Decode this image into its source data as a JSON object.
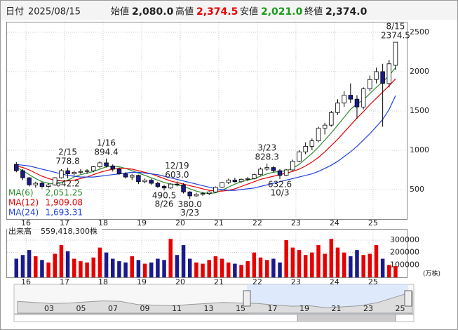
{
  "header": {
    "date_label": "日付",
    "date": "2025/08/15",
    "open_label": "始値",
    "open": "2,080.0",
    "high_label": "高値",
    "high": "2,374.5",
    "low_label": "安値",
    "low": "2,021.0",
    "close_label": "終値",
    "close": "2,374.0"
  },
  "chart_data": {
    "type": "candlestick",
    "up_color": "#ffffff",
    "down_color": "#1a1a8c",
    "vol_up_color": "#e60000",
    "vol_down_color": "#1a1a8c",
    "xlim": [
      -1.45,
      60.75
    ],
    "xticks": [
      {
        "value": 1.5,
        "label": "16"
      },
      {
        "value": 7.5,
        "label": "17"
      },
      {
        "value": 13.5,
        "label": "18"
      },
      {
        "value": 19.5,
        "label": "19"
      },
      {
        "value": 25.5,
        "label": "20"
      },
      {
        "value": 31.5,
        "label": "21"
      },
      {
        "value": 37.5,
        "label": "22"
      },
      {
        "value": 43.5,
        "label": "23"
      },
      {
        "value": 49.5,
        "label": "24"
      },
      {
        "value": 55.5,
        "label": "25"
      }
    ],
    "ylim": [
      125,
      2625
    ],
    "yticks": [
      500,
      1000,
      1500,
      2000,
      2500
    ],
    "grid": true,
    "candles": [
      [
        820,
        850,
        720,
        740
      ],
      [
        740,
        760,
        620,
        650
      ],
      [
        650,
        660,
        540,
        560
      ],
      [
        560,
        600,
        520,
        580
      ],
      [
        580,
        600,
        500,
        540
      ],
      [
        540,
        580,
        510,
        560
      ],
      [
        560,
        660,
        550,
        650
      ],
      [
        650,
        760,
        640,
        740
      ],
      [
        740,
        778.8,
        642.2,
        700
      ],
      [
        700,
        740,
        680,
        720
      ],
      [
        720,
        760,
        700,
        730
      ],
      [
        730,
        760,
        700,
        740
      ],
      [
        740,
        800,
        720,
        790
      ],
      [
        790,
        860,
        770,
        840
      ],
      [
        840,
        894.4,
        780,
        800
      ],
      [
        800,
        820,
        730,
        760
      ],
      [
        760,
        780,
        690,
        700
      ],
      [
        700,
        720,
        640,
        660
      ],
      [
        660,
        700,
        620,
        680
      ],
      [
        680,
        690,
        570,
        600
      ],
      [
        600,
        640,
        580,
        620
      ],
      [
        620,
        640,
        560,
        580
      ],
      [
        580,
        600,
        520,
        540
      ],
      [
        540,
        560,
        490.5,
        520
      ],
      [
        520,
        580,
        510,
        570
      ],
      [
        570,
        603.0,
        540,
        560
      ],
      [
        560,
        580,
        450,
        470
      ],
      [
        470,
        480,
        380.0,
        420
      ],
      [
        420,
        460,
        410,
        440
      ],
      [
        440,
        470,
        420,
        450
      ],
      [
        450,
        480,
        430,
        470
      ],
      [
        470,
        540,
        460,
        530
      ],
      [
        530,
        600,
        520,
        590
      ],
      [
        590,
        640,
        570,
        620
      ],
      [
        620,
        650,
        590,
        600
      ],
      [
        600,
        640,
        590,
        630
      ],
      [
        630,
        660,
        610,
        640
      ],
      [
        640,
        700,
        630,
        690
      ],
      [
        690,
        780,
        680,
        760
      ],
      [
        760,
        828.3,
        740,
        780
      ],
      [
        780,
        800,
        720,
        740
      ],
      [
        740,
        760,
        632.6,
        680
      ],
      [
        680,
        760,
        670,
        750
      ],
      [
        750,
        880,
        740,
        860
      ],
      [
        860,
        1000,
        850,
        980
      ],
      [
        980,
        1100,
        950,
        1050
      ],
      [
        1050,
        1150,
        1000,
        1120
      ],
      [
        1120,
        1300,
        1100,
        1280
      ],
      [
        1280,
        1350,
        1200,
        1320
      ],
      [
        1320,
        1500,
        1300,
        1480
      ],
      [
        1480,
        1650,
        1450,
        1600
      ],
      [
        1600,
        1750,
        1550,
        1700
      ],
      [
        1700,
        1850,
        1600,
        1650
      ],
      [
        1650,
        1700,
        1400,
        1550
      ],
      [
        1550,
        1800,
        1520,
        1780
      ],
      [
        1780,
        1950,
        1750,
        1900
      ],
      [
        1900,
        2050,
        1850,
        2000
      ],
      [
        2000,
        2100,
        1300,
        1850
      ],
      [
        1850,
        2150,
        1800,
        2100
      ],
      [
        2080,
        2374.5,
        2021.0,
        2374.0
      ]
    ],
    "series": [
      {
        "name": "MA(6)",
        "color": "#2e8b2e",
        "last_label": "2,051.25",
        "values": [
          780,
          740,
          690,
          640,
          600,
          580,
          570,
          590,
          620,
          660,
          690,
          710,
          730,
          760,
          790,
          800,
          790,
          770,
          740,
          710,
          680,
          650,
          620,
          590,
          570,
          560,
          540,
          510,
          480,
          460,
          450,
          460,
          490,
          530,
          570,
          600,
          620,
          640,
          670,
          700,
          720,
          730,
          740,
          770,
          820,
          890,
          960,
          1040,
          1130,
          1220,
          1320,
          1420,
          1520,
          1590,
          1640,
          1720,
          1800,
          1870,
          1950,
          2051.25
        ]
      },
      {
        "name": "MA(12)",
        "color": "#e60000",
        "last_label": "1,909.08",
        "values": [
          800,
          780,
          750,
          710,
          670,
          640,
          620,
          610,
          610,
          620,
          640,
          660,
          690,
          720,
          740,
          760,
          770,
          770,
          760,
          740,
          720,
          700,
          670,
          640,
          610,
          590,
          570,
          550,
          530,
          510,
          490,
          480,
          480,
          490,
          510,
          540,
          570,
          600,
          630,
          650,
          670,
          690,
          710,
          730,
          760,
          800,
          850,
          910,
          980,
          1060,
          1140,
          1230,
          1320,
          1410,
          1490,
          1580,
          1660,
          1740,
          1820,
          1909.08
        ]
      },
      {
        "name": "MA(24)",
        "color": "#1f3fe0",
        "last_label": "1,693.31",
        "values": [
          820,
          810,
          800,
          780,
          760,
          740,
          720,
          700,
          680,
          670,
          660,
          660,
          660,
          670,
          680,
          690,
          700,
          710,
          720,
          720,
          710,
          700,
          690,
          670,
          650,
          630,
          610,
          590,
          570,
          550,
          530,
          510,
          500,
          490,
          490,
          500,
          510,
          520,
          540,
          560,
          580,
          600,
          620,
          640,
          660,
          680,
          700,
          730,
          770,
          810,
          860,
          920,
          980,
          1050,
          1130,
          1210,
          1300,
          1390,
          1520,
          1693.31
        ]
      }
    ],
    "annotations": [
      {
        "x": 8,
        "kind": "high",
        "date": "2/15",
        "value": 778.8,
        "label": "778.8"
      },
      {
        "x": 8,
        "kind": "low",
        "value": 642.2,
        "label": "642.2"
      },
      {
        "x": 14,
        "kind": "high",
        "date": "1/16",
        "value": 894.4,
        "label": "894.4"
      },
      {
        "x": 23,
        "kind": "low",
        "date": "8/26",
        "value": 490.5,
        "label": "490.5"
      },
      {
        "x": 25,
        "kind": "high",
        "date": "12/19",
        "value": 603.0,
        "label": "603.0"
      },
      {
        "x": 27,
        "kind": "low",
        "date": "3/23",
        "value": 380.0,
        "label": "380.0"
      },
      {
        "x": 39,
        "kind": "high",
        "date": "3/23",
        "value": 828.3,
        "label": "828.3"
      },
      {
        "x": 41,
        "kind": "low",
        "date": "10/3",
        "value": 632.6,
        "label": "632.6"
      },
      {
        "x": 59,
        "kind": "high",
        "date": "8/15",
        "value": 2374.5,
        "label": "2374.5"
      }
    ],
    "volume_title": "出来高",
    "volume_total": "559,418,300株",
    "volume_unit": "(万株)",
    "vlim": [
      0,
      385000
    ],
    "vticks": [
      100000,
      200000,
      300000
    ],
    "volume": [
      150000,
      180000,
      220000,
      170000,
      140000,
      120000,
      190000,
      260000,
      210000,
      150000,
      130000,
      120000,
      160000,
      240000,
      200000,
      150000,
      130000,
      120000,
      170000,
      140000,
      110000,
      120000,
      150000,
      140000,
      310000,
      180000,
      260000,
      150000,
      120000,
      110000,
      140000,
      170000,
      150000,
      120000,
      110000,
      100000,
      130000,
      200000,
      160000,
      140000,
      150000,
      120000,
      300000,
      240000,
      220000,
      180000,
      200000,
      260000,
      190000,
      310000,
      240000,
      200000,
      170000,
      220000,
      180000,
      190000,
      260000,
      150000,
      100000,
      90000
    ]
  },
  "navigator": {
    "ticks": [
      "03",
      "05",
      "07",
      "09",
      "11",
      "13",
      "15",
      "17",
      "19",
      "21",
      "23",
      "25"
    ],
    "values": [
      1100,
      1000,
      900,
      950,
      1050,
      1150,
      1100,
      800,
      750,
      700,
      800,
      900,
      1000,
      950,
      900,
      750,
      650,
      700,
      500,
      600,
      700,
      1000,
      1500,
      2000
    ]
  }
}
